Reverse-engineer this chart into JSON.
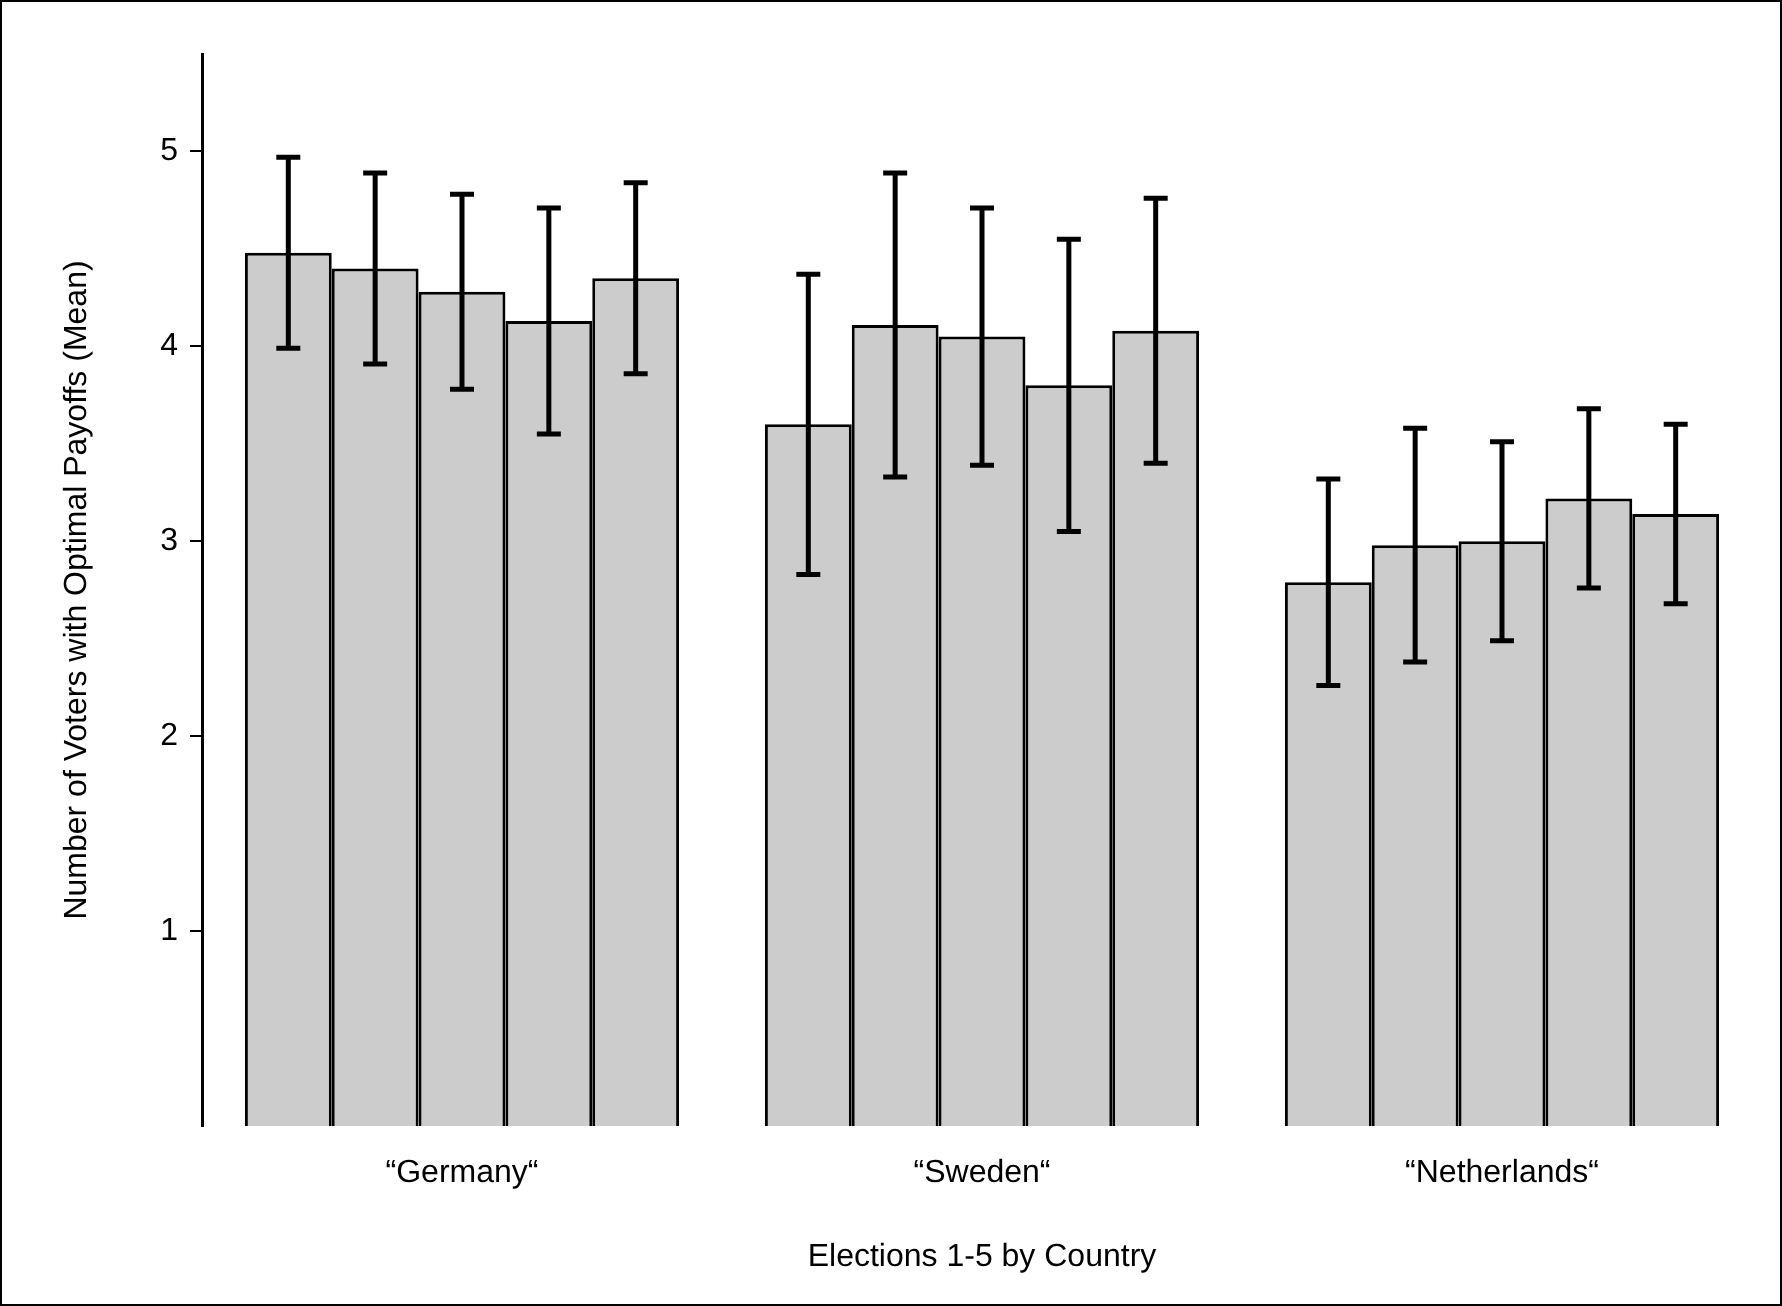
{
  "chart_data": {
    "type": "bar",
    "xlabel": "Elections 1-5 by Country",
    "ylabel": "Number of Voters with Optimal Payoffs (Mean)",
    "categories": [
      "“Germany“",
      "“Sweden“",
      "“Netherlands“"
    ],
    "ylim": [
      0,
      5.5
    ],
    "yticks": [
      1,
      2,
      3,
      4,
      5
    ],
    "series": [
      {
        "color": "#cccccc",
        "values": [
          4.48,
          3.6,
          2.79
        ],
        "errors": [
          0.49,
          0.77,
          0.53
        ]
      },
      {
        "color": "#cccccc",
        "values": [
          4.4,
          4.11,
          2.98
        ],
        "errors": [
          0.49,
          0.78,
          0.6
        ]
      },
      {
        "color": "#cccccc",
        "values": [
          4.28,
          4.05,
          3.0
        ],
        "errors": [
          0.5,
          0.66,
          0.51
        ]
      },
      {
        "color": "#cccccc",
        "values": [
          4.13,
          3.8,
          3.22
        ],
        "errors": [
          0.58,
          0.75,
          0.46
        ]
      },
      {
        "color": "#cccccc",
        "values": [
          4.35,
          4.08,
          3.14
        ],
        "errors": [
          0.49,
          0.68,
          0.46
        ]
      }
    ]
  }
}
